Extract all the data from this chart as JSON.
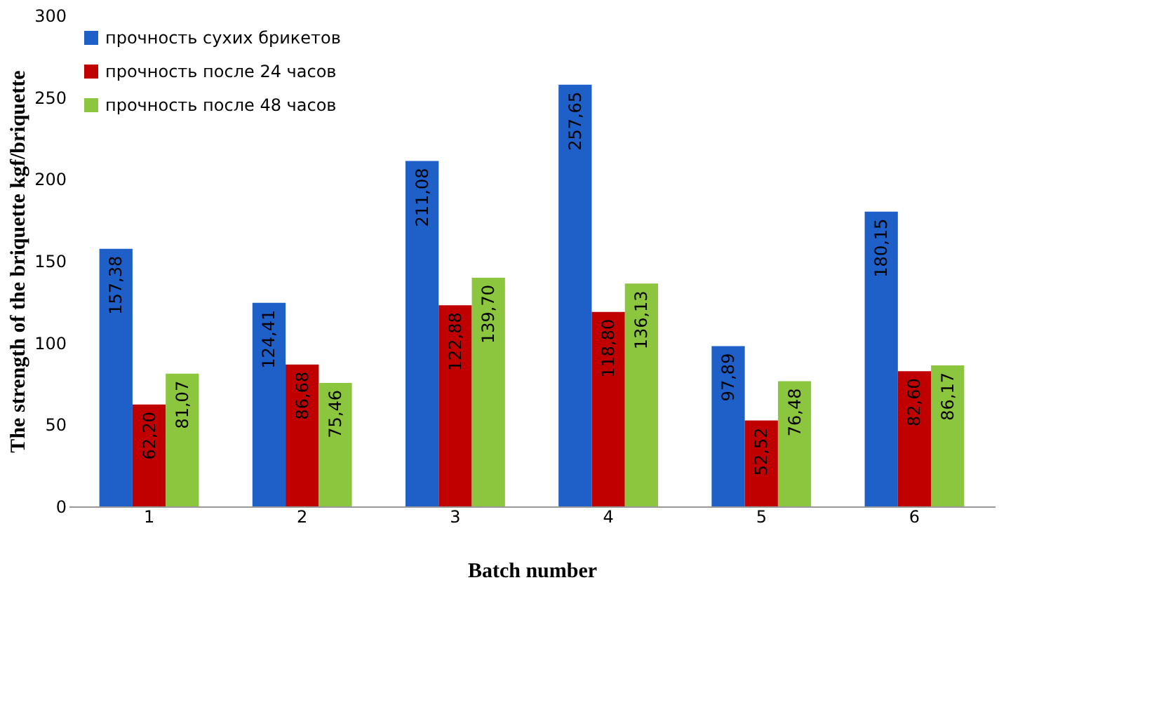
{
  "chart_data": {
    "type": "bar",
    "xlabel": "Batch number",
    "ylabel": "The strength of the briquette kgf/briquette",
    "categories": [
      "1",
      "2",
      "3",
      "4",
      "5",
      "6"
    ],
    "series": [
      {
        "name": "прочность сухих брикетов",
        "color": "#1f5fc8",
        "values": [
          157.38,
          124.41,
          211.08,
          257.65,
          97.89,
          180.15
        ],
        "value_labels": [
          "157,38",
          "124,41",
          "211,08",
          "257,65",
          "97,89",
          "180,15"
        ]
      },
      {
        "name": "прочность после 24 часов",
        "color": "#c00000",
        "values": [
          62.2,
          86.68,
          122.88,
          118.8,
          52.52,
          82.6
        ],
        "value_labels": [
          "62,20",
          "86,68",
          "122,88",
          "118,80",
          "52,52",
          "82,60"
        ]
      },
      {
        "name": "прочность после 48 часов",
        "color": "#8cc63f",
        "values": [
          81.07,
          75.46,
          139.7,
          136.13,
          76.48,
          86.17
        ],
        "value_labels": [
          "81,07",
          "75,46",
          "139,70",
          "136,13",
          "76,48",
          "86,17"
        ]
      }
    ],
    "ylim": [
      0,
      300
    ],
    "yticks": [
      0,
      50,
      100,
      150,
      200,
      250,
      300
    ],
    "grid": false,
    "legend": "top left"
  }
}
